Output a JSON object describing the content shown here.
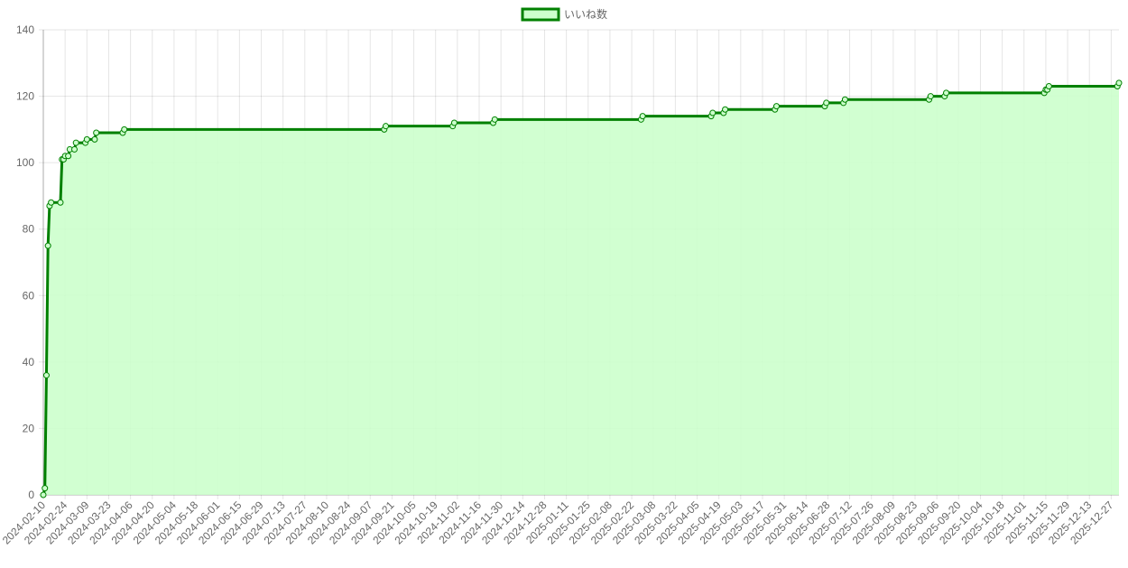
{
  "chart_data": {
    "type": "line",
    "x": [
      "2024-02-10",
      "2024-02-11",
      "2024-02-12",
      "2024-02-13",
      "2024-02-14",
      "2024-02-15",
      "2024-02-21",
      "2024-02-22",
      "2024-02-23",
      "2024-02-24",
      "2024-02-26",
      "2024-02-27",
      "2024-03-01",
      "2024-03-02",
      "2024-03-08",
      "2024-03-09",
      "2024-03-14",
      "2024-03-15",
      "2024-04-01",
      "2024-04-02",
      "2024-09-16",
      "2024-09-17",
      "2024-10-30",
      "2024-10-31",
      "2024-11-25",
      "2024-11-26",
      "2025-02-28",
      "2025-03-01",
      "2025-04-14",
      "2025-04-15",
      "2025-04-22",
      "2025-04-23",
      "2025-05-25",
      "2025-05-26",
      "2025-06-26",
      "2025-06-27",
      "2025-07-08",
      "2025-07-09",
      "2025-09-01",
      "2025-09-02",
      "2025-09-11",
      "2025-09-12",
      "2025-11-14",
      "2025-11-15",
      "2025-11-16",
      "2025-11-17",
      "2025-12-31",
      "2026-01-01"
    ],
    "series": [
      {
        "name": "いいね数",
        "color": "#008000",
        "fill": "#ccffcc",
        "values": [
          0,
          2,
          36,
          75,
          87,
          88,
          88,
          101,
          101,
          102,
          102,
          104,
          104,
          106,
          106,
          107,
          107,
          109,
          109,
          110,
          110,
          111,
          111,
          112,
          112,
          113,
          113,
          114,
          114,
          115,
          115,
          116,
          116,
          117,
          117,
          118,
          118,
          119,
          119,
          120,
          120,
          121,
          121,
          122,
          122,
          123,
          123,
          124
        ]
      }
    ],
    "xlim": [
      "2024-02-10",
      "2026-01-01"
    ],
    "xticks": [
      "2024-02-10",
      "2024-02-24",
      "2024-03-09",
      "2024-03-23",
      "2024-04-06",
      "2024-04-20",
      "2024-05-04",
      "2024-05-18",
      "2024-06-01",
      "2024-06-15",
      "2024-06-29",
      "2024-07-13",
      "2024-07-27",
      "2024-08-10",
      "2024-08-24",
      "2024-09-07",
      "2024-09-21",
      "2024-10-05",
      "2024-10-19",
      "2024-11-02",
      "2024-11-16",
      "2024-11-30",
      "2024-12-14",
      "2024-12-28",
      "2025-01-11",
      "2025-01-25",
      "2025-02-08",
      "2025-02-22",
      "2025-03-08",
      "2025-03-22",
      "2025-04-05",
      "2025-04-19",
      "2025-05-03",
      "2025-05-17",
      "2025-05-31",
      "2025-06-14",
      "2025-06-28",
      "2025-07-12",
      "2025-07-26",
      "2025-08-09",
      "2025-08-23",
      "2025-09-06",
      "2025-09-20",
      "2025-10-04",
      "2025-10-18",
      "2025-11-01",
      "2025-11-15",
      "2025-11-29",
      "2025-12-13",
      "2025-12-27"
    ],
    "ylim": [
      0,
      140
    ],
    "yticks": [
      0,
      20,
      40,
      60,
      80,
      100,
      120,
      140
    ],
    "grid": true,
    "legend": "top"
  }
}
